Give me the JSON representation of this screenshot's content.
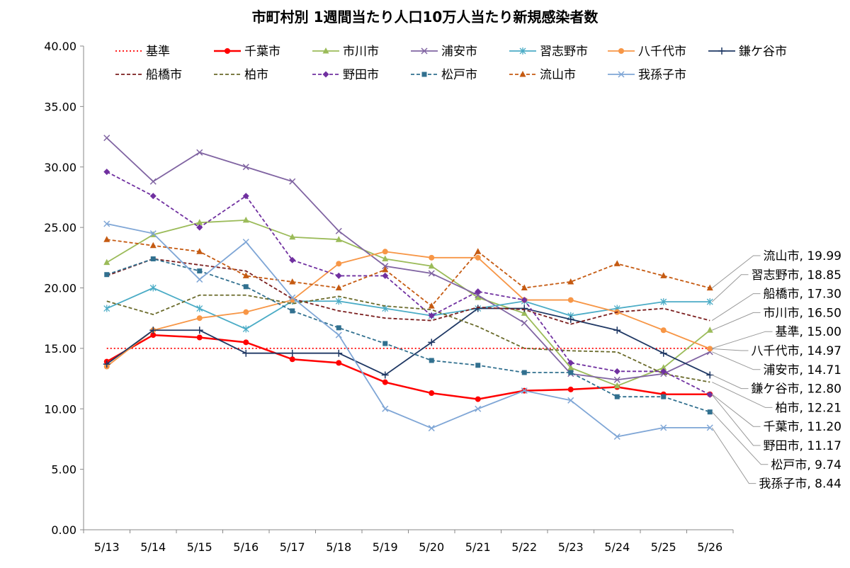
{
  "chart_data": {
    "type": "line",
    "title": "市町村別 1週間当たり人口10万人当たり新規感染者数",
    "categories": [
      "5/13",
      "5/14",
      "5/15",
      "5/16",
      "5/17",
      "5/18",
      "5/19",
      "5/20",
      "5/21",
      "5/22",
      "5/23",
      "5/24",
      "5/25",
      "5/26"
    ],
    "ylim": [
      0,
      40
    ],
    "yticks": [
      "0.00",
      "5.00",
      "10.00",
      "15.00",
      "20.00",
      "25.00",
      "30.00",
      "35.00",
      "40.00"
    ],
    "grid": false,
    "legend_position": "top",
    "series": [
      {
        "name": "基準",
        "color": "#ff0000",
        "dash": "2,3",
        "marker": "none",
        "values": [
          15,
          15,
          15,
          15,
          15,
          15,
          15,
          15,
          15,
          15,
          15,
          15,
          15,
          15
        ],
        "end_label": "基準, 15.00"
      },
      {
        "name": "千葉市",
        "color": "#ff0000",
        "dash": "",
        "marker": "circle",
        "width": 2.5,
        "values": [
          13.9,
          16.1,
          15.9,
          15.5,
          14.1,
          13.8,
          12.2,
          11.3,
          10.8,
          11.5,
          11.6,
          11.8,
          11.2,
          11.2
        ],
        "end_label": "千葉市, 11.20"
      },
      {
        "name": "市川市",
        "color": "#9bbb59",
        "dash": "",
        "marker": "triangle",
        "values": [
          22.1,
          24.4,
          25.4,
          25.6,
          24.2,
          24.0,
          22.4,
          21.8,
          19.2,
          17.9,
          13.4,
          11.9,
          13.4,
          16.5
        ],
        "end_label": "市川市, 16.50"
      },
      {
        "name": "浦安市",
        "color": "#8064a2",
        "dash": "",
        "marker": "x",
        "values": [
          32.4,
          28.8,
          31.2,
          30.0,
          28.8,
          24.7,
          21.8,
          21.2,
          19.4,
          17.1,
          12.9,
          12.4,
          12.9,
          14.71
        ],
        "end_label": "浦安市, 14.71"
      },
      {
        "name": "習志野市",
        "color": "#4bacc6",
        "dash": "",
        "marker": "asterisk",
        "values": [
          18.3,
          20.0,
          18.3,
          16.6,
          18.9,
          18.9,
          18.3,
          17.7,
          18.3,
          18.9,
          17.7,
          18.3,
          18.85,
          18.85
        ],
        "end_label": "習志野市, 18.85"
      },
      {
        "name": "八千代市",
        "color": "#f79646",
        "dash": "",
        "marker": "circle",
        "values": [
          13.5,
          16.5,
          17.5,
          18.0,
          19.0,
          22.0,
          23.0,
          22.5,
          22.5,
          19.0,
          19.0,
          18.0,
          16.5,
          14.97
        ],
        "end_label": "八千代市, 14.97"
      },
      {
        "name": "鎌ケ谷市",
        "color": "#1f3864",
        "dash": "",
        "marker": "plus",
        "values": [
          13.7,
          16.5,
          16.5,
          14.6,
          14.6,
          14.6,
          12.8,
          15.5,
          18.3,
          18.3,
          17.4,
          16.5,
          14.6,
          12.8
        ],
        "end_label": "鎌ケ谷市, 12.80"
      },
      {
        "name": "船橋市",
        "color": "#7b1f1f",
        "dash": "5,3",
        "marker": "none",
        "values": [
          21.0,
          22.4,
          21.9,
          21.4,
          19.1,
          18.1,
          17.5,
          17.3,
          18.4,
          18.2,
          17.0,
          18.0,
          18.3,
          17.3
        ],
        "end_label": "船橋市, 17.30"
      },
      {
        "name": "柏市",
        "color": "#6a6a2a",
        "dash": "5,3",
        "marker": "none",
        "values": [
          18.9,
          17.8,
          19.4,
          19.4,
          18.7,
          19.3,
          18.5,
          18.2,
          16.8,
          15.0,
          14.8,
          14.7,
          12.9,
          12.21
        ],
        "end_label": "柏市, 12.21"
      },
      {
        "name": "野田市",
        "color": "#7030a0",
        "dash": "5,3",
        "marker": "diamond",
        "values": [
          29.6,
          27.6,
          25.0,
          27.6,
          22.3,
          21.0,
          21.0,
          17.7,
          19.7,
          19.0,
          13.8,
          13.1,
          13.1,
          11.17
        ],
        "end_label": "野田市, 11.17"
      },
      {
        "name": "松戸市",
        "color": "#31708f",
        "dash": "5,3",
        "marker": "square",
        "values": [
          21.1,
          22.4,
          21.4,
          20.1,
          18.1,
          16.7,
          15.4,
          14.0,
          13.6,
          13.0,
          13.0,
          11.0,
          11.0,
          9.74
        ],
        "end_label": "松戸市, 9.74"
      },
      {
        "name": "流山市",
        "color": "#c55a11",
        "dash": "5,3",
        "marker": "triangle",
        "values": [
          24.0,
          23.5,
          23.0,
          21.0,
          20.5,
          20.0,
          21.5,
          18.5,
          23.0,
          20.0,
          20.5,
          22.0,
          21.0,
          19.99
        ],
        "end_label": "流山市, 19.99"
      },
      {
        "name": "我孫子市",
        "color": "#7fa6d6",
        "dash": "",
        "marker": "x",
        "values": [
          25.3,
          24.5,
          20.7,
          23.8,
          19.2,
          16.1,
          10.0,
          8.4,
          10.0,
          11.5,
          10.7,
          7.7,
          8.44,
          8.44
        ],
        "end_label": "我孫子市, 8.44"
      }
    ],
    "callout_order": [
      "流山市",
      "習志野市",
      "船橋市",
      "市川市",
      "基準",
      "八千代市",
      "浦安市",
      "鎌ケ谷市",
      "柏市",
      "千葉市",
      "野田市",
      "松戸市",
      "我孫子市"
    ]
  }
}
